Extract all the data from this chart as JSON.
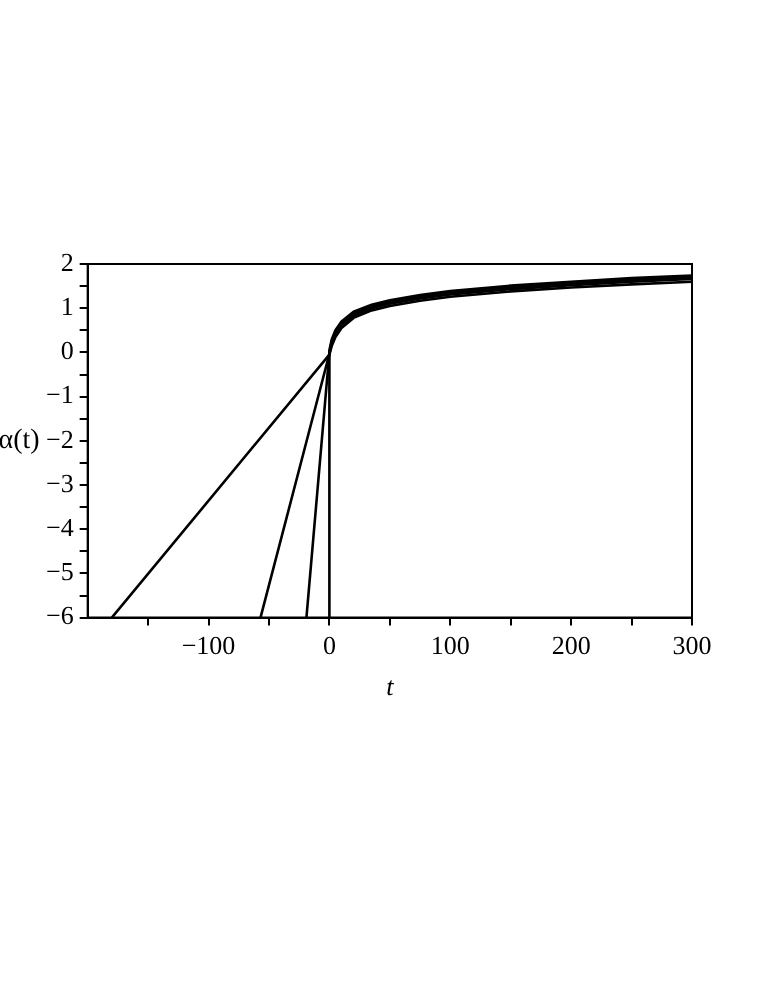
{
  "chart_data": {
    "type": "line",
    "xlabel": "t",
    "ylabel": "α(t)",
    "xlim": [
      -200,
      300
    ],
    "ylim": [
      -6,
      2
    ],
    "xticks": [
      {
        "value": -150,
        "label": null
      },
      {
        "value": -100,
        "label": "−100"
      },
      {
        "value": -50,
        "label": null
      },
      0,
      {
        "value": 50,
        "label": null
      },
      100,
      {
        "value": 150,
        "label": null
      },
      200,
      {
        "value": 250,
        "label": null
      },
      300
    ],
    "yticks": [
      {
        "value": -6,
        "label": "−6"
      },
      {
        "value": -5.5,
        "label": null
      },
      {
        "value": -5,
        "label": "−5"
      },
      {
        "value": -4.5,
        "label": null
      },
      {
        "value": -4,
        "label": "−4"
      },
      {
        "value": -3.5,
        "label": null
      },
      {
        "value": -3,
        "label": "−3"
      },
      {
        "value": -2.5,
        "label": null
      },
      {
        "value": -2,
        "label": "−2"
      },
      {
        "value": -1.5,
        "label": null
      },
      {
        "value": -1,
        "label": "−1"
      },
      {
        "value": -0.5,
        "label": null
      },
      0,
      {
        "value": 0.5,
        "label": null
      },
      1,
      {
        "value": 1.5,
        "label": null
      },
      2
    ],
    "grid": false,
    "legend": false,
    "marker": "none",
    "line_style": "solid",
    "series": [
      {
        "color": "#000000",
        "x": [
          -180,
          0,
          2,
          5,
          10,
          20,
          35,
          50,
          75,
          100,
          150,
          200,
          250,
          300
        ],
        "values": [
          -6,
          -0.05,
          0.15,
          0.35,
          0.55,
          0.78,
          0.95,
          1.05,
          1.17,
          1.26,
          1.38,
          1.47,
          1.54,
          1.6
        ]
      },
      {
        "color": "#000000",
        "x": [
          -57,
          0,
          2,
          5,
          10,
          20,
          35,
          50,
          75,
          100,
          150,
          200,
          250,
          300
        ],
        "values": [
          -6,
          -0.03,
          0.2,
          0.4,
          0.6,
          0.83,
          1.0,
          1.1,
          1.22,
          1.31,
          1.43,
          1.52,
          1.6,
          1.66
        ]
      },
      {
        "color": "#000000",
        "x": [
          -19,
          0,
          2,
          5,
          10,
          20,
          35,
          50,
          75,
          100,
          150,
          200,
          250,
          300
        ],
        "values": [
          -6,
          0,
          0.25,
          0.45,
          0.65,
          0.88,
          1.04,
          1.14,
          1.26,
          1.35,
          1.47,
          1.56,
          1.64,
          1.7
        ]
      },
      {
        "color": "#000000",
        "x": [
          -1,
          0,
          2,
          5,
          10,
          20,
          35,
          50,
          75,
          100,
          150,
          200,
          250,
          300
        ],
        "values": [
          -6,
          0.05,
          0.3,
          0.5,
          0.7,
          0.92,
          1.08,
          1.18,
          1.3,
          1.39,
          1.51,
          1.6,
          1.68,
          1.74
        ]
      }
    ]
  }
}
